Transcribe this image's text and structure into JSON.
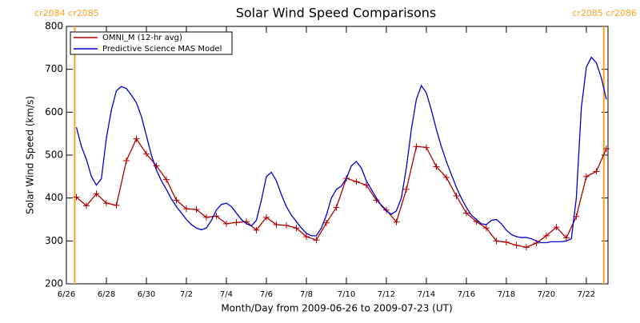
{
  "chart_data": {
    "type": "line",
    "title": "Solar Wind Speed Comparisons",
    "xlabel": "Month/Day from 2009-06-26 to 2009-07-23 (UT)",
    "ylabel": "Solar Wind Speed (km/s)",
    "xlim": [
      "2009-06-26T00:00",
      "2009-07-23T02:00"
    ],
    "ylim": [
      200,
      800
    ],
    "yticks": [
      200,
      300,
      400,
      500,
      600,
      700,
      800
    ],
    "xticks": [
      {
        "value": "2009-06-26T00:00",
        "label": "6/26"
      },
      {
        "value": "2009-06-28T00:00",
        "label": "6/28"
      },
      {
        "value": "2009-06-30T00:00",
        "label": "6/30"
      },
      {
        "value": "2009-07-02T00:00",
        "label": "7/2"
      },
      {
        "value": "2009-07-04T00:00",
        "label": "7/4"
      },
      {
        "value": "2009-07-06T00:00",
        "label": "7/6"
      },
      {
        "value": "2009-07-08T00:00",
        "label": "7/8"
      },
      {
        "value": "2009-07-10T00:00",
        "label": "7/10"
      },
      {
        "value": "2009-07-12T00:00",
        "label": "7/12"
      },
      {
        "value": "2009-07-14T00:00",
        "label": "7/14"
      },
      {
        "value": "2009-07-16T00:00",
        "label": "7/16"
      },
      {
        "value": "2009-07-18T00:00",
        "label": "7/18"
      },
      {
        "value": "2009-07-20T00:00",
        "label": "7/20"
      },
      {
        "value": "2009-07-22T00:00",
        "label": "7/22"
      }
    ],
    "legend": "upper left",
    "annotations": [
      {
        "x": "2009-06-26T10:00",
        "label": "cr2084 cr2085",
        "color": "#ffa020"
      },
      {
        "x": "2009-07-22T21:00",
        "label": "cr2085 cr2086",
        "color": "#ffa020"
      }
    ],
    "series": [
      {
        "name": "OMNI_M (12-hr avg)",
        "color": "#b00000",
        "marker": "+",
        "x": [
          "2009-06-26T12:00",
          "2009-06-27T00:00",
          "2009-06-27T12:00",
          "2009-06-28T00:00",
          "2009-06-28T12:00",
          "2009-06-29T00:00",
          "2009-06-29T12:00",
          "2009-06-30T00:00",
          "2009-06-30T12:00",
          "2009-07-01T00:00",
          "2009-07-01T12:00",
          "2009-07-02T00:00",
          "2009-07-02T12:00",
          "2009-07-03T00:00",
          "2009-07-03T12:00",
          "2009-07-04T00:00",
          "2009-07-04T12:00",
          "2009-07-05T00:00",
          "2009-07-05T12:00",
          "2009-07-06T00:00",
          "2009-07-06T12:00",
          "2009-07-07T00:00",
          "2009-07-07T12:00",
          "2009-07-08T00:00",
          "2009-07-08T12:00",
          "2009-07-09T00:00",
          "2009-07-09T12:00",
          "2009-07-10T00:00",
          "2009-07-10T12:00",
          "2009-07-11T00:00",
          "2009-07-11T12:00",
          "2009-07-12T00:00",
          "2009-07-12T12:00",
          "2009-07-13T00:00",
          "2009-07-13T12:00",
          "2009-07-14T00:00",
          "2009-07-14T12:00",
          "2009-07-15T00:00",
          "2009-07-15T12:00",
          "2009-07-16T00:00",
          "2009-07-16T12:00",
          "2009-07-17T00:00",
          "2009-07-17T12:00",
          "2009-07-18T00:00",
          "2009-07-18T12:00",
          "2009-07-19T00:00",
          "2009-07-19T12:00",
          "2009-07-20T00:00",
          "2009-07-20T12:00",
          "2009-07-21T00:00",
          "2009-07-21T12:00",
          "2009-07-22T00:00",
          "2009-07-22T12:00",
          "2009-07-23T00:00"
        ],
        "values": [
          402,
          382,
          410,
          388,
          383,
          487,
          538,
          503,
          475,
          443,
          395,
          375,
          373,
          355,
          358,
          340,
          343,
          345,
          325,
          355,
          338,
          336,
          330,
          310,
          302,
          342,
          378,
          446,
          438,
          430,
          395,
          372,
          344,
          420,
          520,
          518,
          473,
          448,
          405,
          365,
          345,
          330,
          300,
          297,
          290,
          285,
          295,
          312,
          332,
          307,
          357,
          450,
          462,
          515
        ]
      },
      {
        "name": "Predictive Science MAS Model",
        "color": "#0000cc",
        "x": [
          "2009-06-26T12:00",
          "2009-06-26T18:00",
          "2009-06-27T00:00",
          "2009-06-27T06:00",
          "2009-06-27T12:00",
          "2009-06-27T18:00",
          "2009-06-28T00:00",
          "2009-06-28T06:00",
          "2009-06-28T12:00",
          "2009-06-28T18:00",
          "2009-06-29T00:00",
          "2009-06-29T06:00",
          "2009-06-29T12:00",
          "2009-06-29T18:00",
          "2009-06-30T00:00",
          "2009-06-30T06:00",
          "2009-06-30T12:00",
          "2009-06-30T18:00",
          "2009-07-01T00:00",
          "2009-07-01T06:00",
          "2009-07-01T12:00",
          "2009-07-01T18:00",
          "2009-07-02T00:00",
          "2009-07-02T06:00",
          "2009-07-02T12:00",
          "2009-07-02T18:00",
          "2009-07-03T00:00",
          "2009-07-03T06:00",
          "2009-07-03T12:00",
          "2009-07-03T18:00",
          "2009-07-04T00:00",
          "2009-07-04T06:00",
          "2009-07-04T12:00",
          "2009-07-04T18:00",
          "2009-07-05T00:00",
          "2009-07-05T06:00",
          "2009-07-05T12:00",
          "2009-07-05T18:00",
          "2009-07-06T00:00",
          "2009-07-06T06:00",
          "2009-07-06T12:00",
          "2009-07-06T18:00",
          "2009-07-07T00:00",
          "2009-07-07T06:00",
          "2009-07-07T12:00",
          "2009-07-07T18:00",
          "2009-07-08T00:00",
          "2009-07-08T06:00",
          "2009-07-08T12:00",
          "2009-07-08T18:00",
          "2009-07-09T00:00",
          "2009-07-09T06:00",
          "2009-07-09T12:00",
          "2009-07-09T18:00",
          "2009-07-10T00:00",
          "2009-07-10T06:00",
          "2009-07-10T12:00",
          "2009-07-10T18:00",
          "2009-07-11T00:00",
          "2009-07-11T06:00",
          "2009-07-11T12:00",
          "2009-07-11T18:00",
          "2009-07-12T00:00",
          "2009-07-12T06:00",
          "2009-07-12T12:00",
          "2009-07-12T18:00",
          "2009-07-13T00:00",
          "2009-07-13T06:00",
          "2009-07-13T12:00",
          "2009-07-13T18:00",
          "2009-07-14T00:00",
          "2009-07-14T06:00",
          "2009-07-14T12:00",
          "2009-07-14T18:00",
          "2009-07-15T00:00",
          "2009-07-15T06:00",
          "2009-07-15T12:00",
          "2009-07-15T18:00",
          "2009-07-16T00:00",
          "2009-07-16T06:00",
          "2009-07-16T12:00",
          "2009-07-16T18:00",
          "2009-07-17T00:00",
          "2009-07-17T06:00",
          "2009-07-17T12:00",
          "2009-07-17T18:00",
          "2009-07-18T00:00",
          "2009-07-18T06:00",
          "2009-07-18T12:00",
          "2009-07-18T18:00",
          "2009-07-19T00:00",
          "2009-07-19T06:00",
          "2009-07-19T12:00",
          "2009-07-19T18:00",
          "2009-07-20T00:00",
          "2009-07-20T06:00",
          "2009-07-20T12:00",
          "2009-07-20T18:00",
          "2009-07-21T00:00",
          "2009-07-21T06:00",
          "2009-07-21T12:00",
          "2009-07-21T18:00",
          "2009-07-22T00:00",
          "2009-07-22T06:00",
          "2009-07-22T12:00",
          "2009-07-22T18:00",
          "2009-07-23T00:00"
        ],
        "values": [
          565,
          520,
          490,
          450,
          430,
          445,
          540,
          605,
          650,
          660,
          655,
          640,
          622,
          590,
          545,
          500,
          465,
          440,
          420,
          398,
          380,
          365,
          350,
          338,
          330,
          326,
          330,
          348,
          372,
          385,
          388,
          380,
          365,
          350,
          340,
          335,
          348,
          395,
          450,
          460,
          440,
          408,
          380,
          360,
          345,
          330,
          318,
          312,
          312,
          330,
          360,
          400,
          420,
          428,
          445,
          475,
          485,
          470,
          440,
          420,
          400,
          382,
          370,
          362,
          370,
          400,
          470,
          560,
          630,
          662,
          645,
          605,
          560,
          520,
          485,
          455,
          425,
          400,
          378,
          360,
          350,
          340,
          338,
          348,
          350,
          340,
          325,
          315,
          310,
          308,
          308,
          305,
          300,
          296,
          296,
          298,
          298,
          298,
          300,
          305,
          400,
          610,
          705,
          728,
          715,
          680,
          630
        ]
      }
    ]
  }
}
